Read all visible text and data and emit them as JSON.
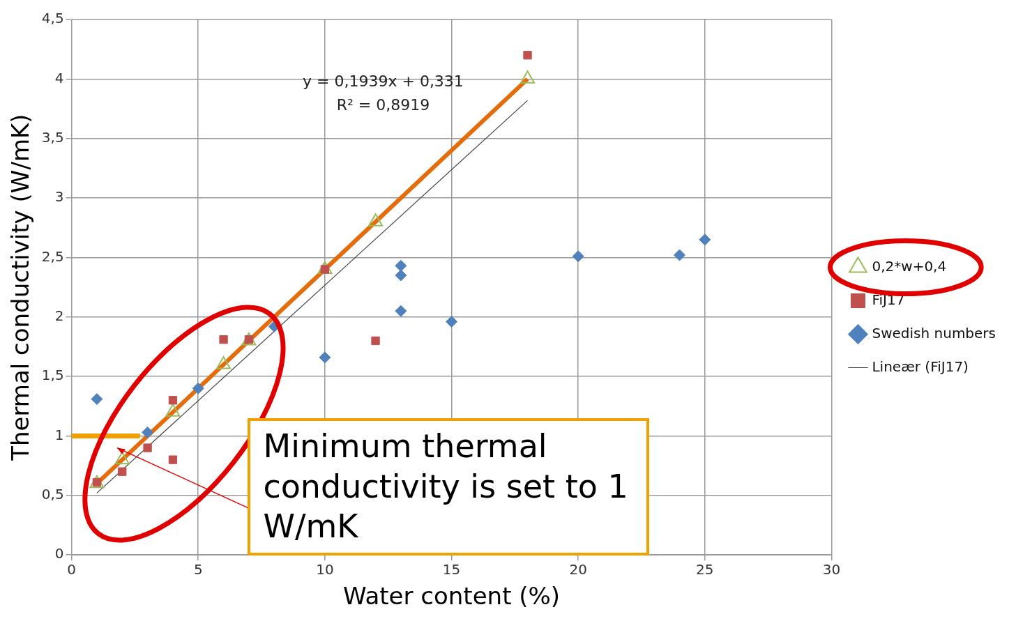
{
  "chart_data": {
    "type": "scatter",
    "xlabel": "Water content (%)",
    "ylabel": "Thermal conductivity (W/mK)",
    "xlim": [
      0,
      30
    ],
    "xticks": [
      0,
      5,
      10,
      15,
      20,
      25,
      30
    ],
    "ylim": [
      0,
      4.5
    ],
    "yticks": [
      0,
      {
        "value": 0.5,
        "label": "0,5"
      },
      1,
      {
        "value": 1.5,
        "label": "1,5"
      },
      2,
      {
        "value": 2.5,
        "label": "2,5"
      },
      3,
      {
        "value": 3.5,
        "label": "3,5"
      },
      4,
      {
        "value": 4.5,
        "label": "4,5"
      }
    ],
    "grid": true,
    "legend": "right",
    "series": [
      {
        "name": "0,2*w+0,4",
        "type": "line",
        "color": "#e46c0a",
        "marker": "triangle",
        "x": [
          1,
          2,
          4,
          6,
          7,
          10,
          12,
          18
        ],
        "values": [
          0.6,
          0.8,
          1.2,
          1.6,
          1.8,
          2.4,
          2.8,
          4.0
        ]
      },
      {
        "name": "FiJ17",
        "type": "scatter",
        "color": "#c0504d",
        "marker": "square",
        "x": [
          1,
          2,
          3,
          4,
          4,
          6,
          7,
          10,
          12,
          18
        ],
        "values": [
          0.61,
          0.7,
          0.9,
          1.3,
          0.8,
          1.81,
          1.81,
          2.4,
          1.8,
          4.2
        ]
      },
      {
        "name": "Swedish numbers",
        "type": "scatter",
        "color": "#4f81bd",
        "marker": "diamond",
        "x": [
          1,
          3,
          5,
          8,
          10,
          13,
          13,
          13,
          15,
          20,
          24,
          25
        ],
        "values": [
          1.31,
          1.03,
          1.4,
          1.92,
          1.66,
          2.43,
          2.35,
          2.05,
          1.96,
          2.51,
          2.52,
          2.65
        ]
      },
      {
        "name": "Lineær (FiJ17)",
        "type": "line",
        "color": "#404040",
        "marker": "none",
        "x": [
          1,
          18
        ],
        "values": [
          0.52,
          3.82
        ]
      }
    ],
    "ref_lines": [
      {
        "axis": "y",
        "value": 1,
        "color": "#f0a000"
      }
    ],
    "annotations": [
      "y = 0,1939x + 0,331",
      "R² = 0,8919",
      "Minimum thermal conductivity is set to 1 W/mK"
    ]
  }
}
